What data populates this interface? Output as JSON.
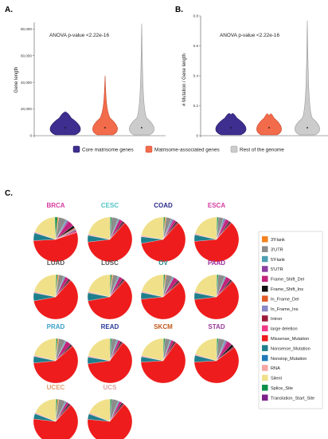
{
  "panels": {
    "a": "A.",
    "b": "B.",
    "c": "C."
  },
  "chart_data": [
    {
      "type": "violin",
      "panel": "A.",
      "ylabel": "Gene length",
      "ylim": [
        0,
        85000
      ],
      "yticks": [
        0,
        20000,
        40000,
        60000,
        80000
      ],
      "ytick_labels": [
        "0",
        "20,000",
        "40,000",
        "60,000",
        "80,000"
      ],
      "annotation": "ANOVA p-value <2.22e-16",
      "categories": [
        "Core matrisome genes",
        "Matrisome-associated genes",
        "Rest of the genome"
      ],
      "max_values": [
        18000,
        45000,
        84000
      ],
      "grid": false
    },
    {
      "type": "violin",
      "panel": "B.",
      "ylabel": "# Mutation / Gene length",
      "ylim": [
        0,
        0.8
      ],
      "yticks": [
        0,
        0.2,
        0.4,
        0.6,
        0.8
      ],
      "ytick_labels": [
        "0",
        "0.2",
        "0.4",
        "0.6",
        "0.8"
      ],
      "annotation": "ANOVA p-value <2.22e-16",
      "categories": [
        "Core matrisome genes",
        "Matrisome-associated genes",
        "Rest of the genome"
      ],
      "max_values": [
        0.14,
        0.13,
        0.77
      ],
      "grid": false
    },
    {
      "type": "pie",
      "panel": "C.",
      "legend": [
        "3'Flank",
        "3'UTR",
        "5'Flank",
        "5'UTR",
        "Frame_Shift_Del",
        "Frame_Shift_Ins",
        "In_Frame_Del",
        "In_Frame_Ins",
        "Intron",
        "large deletion",
        "Missense_Mutation",
        "Nonsense_Mutation",
        "Nonstop_Mutation",
        "RNA",
        "Silent",
        "Splice_Site",
        "Translation_Start_Site"
      ],
      "legend_position": "right",
      "pies": [
        {
          "name": "BRCA",
          "values": [
            1,
            6,
            1,
            1,
            5,
            2,
            1,
            1,
            1,
            1,
            58,
            6,
            0,
            1,
            20,
            2,
            0
          ]
        },
        {
          "name": "CESC",
          "values": [
            0,
            5,
            1,
            0,
            3,
            1,
            0,
            0,
            1,
            0,
            63,
            5,
            0,
            1,
            22,
            1,
            0
          ]
        },
        {
          "name": "COAD",
          "values": [
            1,
            4,
            1,
            1,
            2,
            1,
            0,
            0,
            1,
            0,
            62,
            5,
            0,
            1,
            23,
            1,
            0
          ]
        },
        {
          "name": "ESCA",
          "values": [
            0,
            4,
            1,
            1,
            3,
            1,
            0,
            0,
            1,
            0,
            65,
            5,
            0,
            1,
            22,
            1,
            0
          ]
        },
        {
          "name": "LUAD",
          "values": [
            1,
            4,
            1,
            0,
            3,
            1,
            0,
            0,
            1,
            0,
            62,
            6,
            0,
            1,
            22,
            1,
            0
          ]
        },
        {
          "name": "LUSC",
          "values": [
            1,
            4,
            1,
            0,
            3,
            1,
            0,
            0,
            1,
            0,
            62,
            6,
            0,
            1,
            22,
            1,
            0
          ]
        },
        {
          "name": "OV",
          "values": [
            1,
            5,
            1,
            0,
            4,
            1,
            0,
            0,
            1,
            0,
            62,
            5,
            0,
            1,
            22,
            1,
            0
          ]
        },
        {
          "name": "PAAD",
          "values": [
            0,
            5,
            1,
            0,
            4,
            1,
            0,
            0,
            1,
            0,
            62,
            5,
            0,
            1,
            22,
            1,
            0
          ]
        },
        {
          "name": "PRAD",
          "values": [
            1,
            5,
            1,
            0,
            4,
            1,
            0,
            0,
            1,
            0,
            62,
            5,
            0,
            1,
            22,
            1,
            0
          ]
        },
        {
          "name": "READ",
          "values": [
            0,
            4,
            1,
            0,
            2,
            1,
            0,
            0,
            1,
            0,
            64,
            5,
            0,
            1,
            22,
            1,
            0
          ]
        },
        {
          "name": "SKCM",
          "values": [
            0,
            4,
            1,
            0,
            2,
            1,
            0,
            0,
            1,
            0,
            66,
            4,
            0,
            1,
            22,
            1,
            0
          ]
        },
        {
          "name": "STAD",
          "values": [
            0,
            5,
            1,
            1,
            4,
            2,
            0,
            0,
            1,
            0,
            61,
            5,
            0,
            1,
            21,
            1,
            0
          ]
        },
        {
          "name": "UCEC",
          "values": [
            1,
            5,
            1,
            0,
            2,
            1,
            0,
            0,
            1,
            0,
            66,
            4,
            0,
            1,
            19,
            1,
            0
          ]
        },
        {
          "name": "UCS",
          "values": [
            0,
            5,
            1,
            0,
            2,
            1,
            0,
            0,
            1,
            0,
            66,
            4,
            0,
            1,
            19,
            1,
            0
          ]
        }
      ]
    }
  ],
  "colors": {
    "violins": [
      "#3d2e8f",
      "#f26b4b",
      "#cccccc"
    ],
    "violin_strokes": [
      "#2a1f6a",
      "#c84a2e",
      "#999999"
    ],
    "pie": [
      "#f5821f",
      "#8c8c8c",
      "#4f9fb3",
      "#8c3fa0",
      "#c2247b",
      "#111111",
      "#e05a2a",
      "#8888c8",
      "#9c1a3a",
      "#ee3b86",
      "#ee1c1c",
      "#1f7f8c",
      "#1f79b8",
      "#f7a5a3",
      "#f0e08a",
      "#0f8f4a",
      "#7b1f8a"
    ],
    "pie_titles": [
      "#d63aa0",
      "#4fc5c5",
      "#2a2a8a",
      "#d63aa0",
      "#555555",
      "#555555",
      "#2a8a8a",
      "#9a2a9a",
      "#3aa0c8",
      "#2a3a9a",
      "#c05a1a",
      "#9a3a9a",
      "#e0a070",
      "#e0a0a0"
    ]
  }
}
